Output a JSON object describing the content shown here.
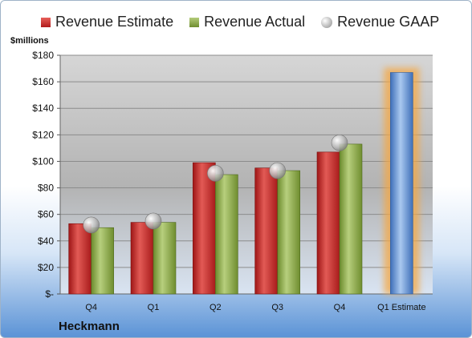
{
  "company": "Heckmann",
  "unit_label": "$millions",
  "chart_data": {
    "type": "bar",
    "categories": [
      "Q4",
      "Q1",
      "Q2",
      "Q3",
      "Q4",
      "Q1 Estimate"
    ],
    "series": [
      {
        "name": "Revenue Estimate",
        "values": [
          53,
          54,
          99,
          95,
          107,
          null
        ],
        "color": "#c0282a"
      },
      {
        "name": "Revenue Actual",
        "values": [
          50,
          54,
          90,
          93,
          113,
          null
        ],
        "color": "#8aa64a"
      },
      {
        "name": "Revenue GAAP",
        "values": [
          52,
          55,
          91,
          93,
          114,
          null
        ],
        "color": "#b9b9b9"
      },
      {
        "name": "",
        "values": [
          null,
          null,
          null,
          null,
          null,
          167
        ],
        "color": "#5b8fd6"
      }
    ],
    "ylim": [
      0,
      180
    ],
    "y_ticks": [
      0,
      20,
      40,
      60,
      80,
      100,
      120,
      140,
      160,
      180
    ],
    "y_tick_labels": [
      "$-",
      "$20",
      "$40",
      "$60",
      "$80",
      "$100",
      "$120",
      "$140",
      "$160",
      "$180"
    ],
    "legend_position": "top",
    "grid": true
  }
}
